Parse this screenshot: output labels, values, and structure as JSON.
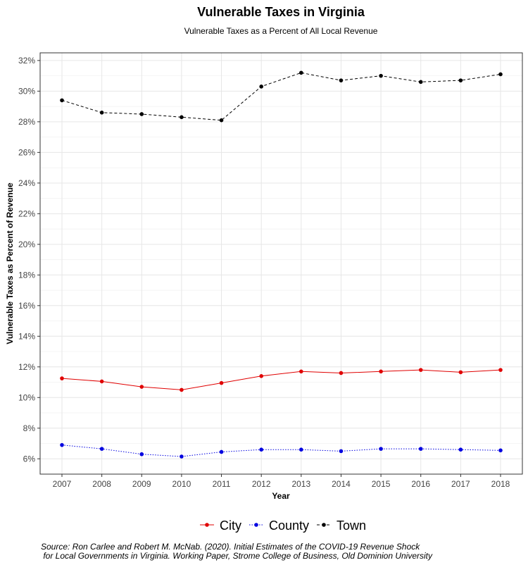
{
  "chart_data": {
    "type": "line",
    "title": "Vulnerable Taxes in Virginia",
    "subtitle": "Vulnerable Taxes as a Percent of All Local Revenue",
    "xlabel": "Year",
    "ylabel": "Vulnerable Taxes as Percent of Revenue",
    "x": [
      2007,
      2008,
      2009,
      2010,
      2011,
      2012,
      2013,
      2014,
      2015,
      2016,
      2017,
      2018
    ],
    "x_tick_labels": [
      "2007",
      "2008",
      "2009",
      "2010",
      "2011",
      "2012",
      "2013",
      "2014",
      "2015",
      "2016",
      "2017",
      "2018"
    ],
    "ylim": [
      5,
      32.5
    ],
    "y_ticks": [
      6,
      8,
      10,
      12,
      14,
      16,
      18,
      20,
      22,
      24,
      26,
      28,
      30,
      32
    ],
    "y_tick_labels": [
      "6%",
      "8%",
      "10%",
      "12%",
      "14%",
      "16%",
      "18%",
      "20%",
      "22%",
      "24%",
      "26%",
      "28%",
      "30%",
      "32%"
    ],
    "grid": true,
    "legend_position": "bottom",
    "series": [
      {
        "name": "City",
        "color": "#e00000",
        "dash": "solid",
        "values": [
          11.25,
          11.05,
          10.7,
          10.5,
          10.95,
          11.4,
          11.7,
          11.6,
          11.7,
          11.8,
          11.65,
          11.8
        ]
      },
      {
        "name": "County",
        "color": "#0000e0",
        "dash": "dotted",
        "values": [
          6.9,
          6.65,
          6.3,
          6.15,
          6.45,
          6.6,
          6.6,
          6.5,
          6.65,
          6.65,
          6.6,
          6.55
        ]
      },
      {
        "name": "Town",
        "color": "#000000",
        "dash": "dashed",
        "values": [
          29.4,
          28.6,
          28.5,
          28.3,
          28.1,
          30.3,
          31.2,
          30.7,
          31.0,
          30.6,
          30.7,
          31.1
        ]
      }
    ],
    "source": [
      "Source: Ron Carlee and Robert M. McNab. (2020). Initial Estimates of the COVID-19 Revenue Shock",
      " for Local Governments in Virginia. Working Paper, Strome College of Business, Old Dominion University"
    ]
  }
}
